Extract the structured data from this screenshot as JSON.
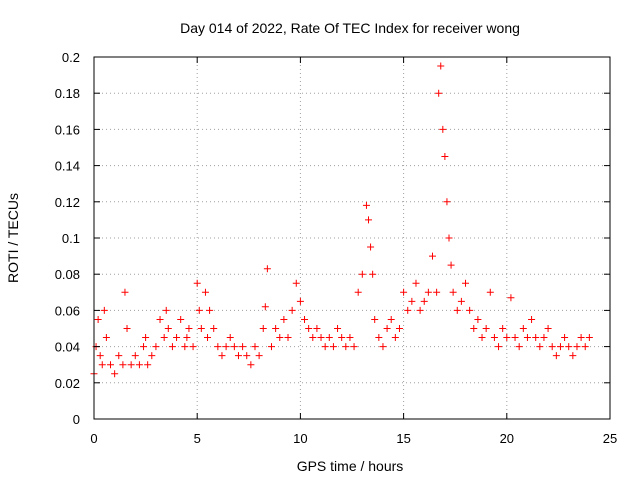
{
  "chart_data": {
    "type": "scatter",
    "title": "Day 014 of 2022, Rate Of TEC Index for receiver wong",
    "xlabel": "GPS time / hours",
    "ylabel": "ROTI / TECUs",
    "xlim": [
      0,
      25
    ],
    "ylim": [
      0,
      0.2
    ],
    "xticks": [
      0,
      5,
      10,
      15,
      20,
      25
    ],
    "yticks": [
      0,
      0.02,
      0.04,
      0.06,
      0.08,
      0.1,
      0.12,
      0.14,
      0.16,
      0.18,
      0.2
    ],
    "grid": true,
    "marker": "+",
    "color": "#ff0000",
    "series": [
      {
        "name": "ROTI",
        "x": [
          0.0,
          0.1,
          0.2,
          0.3,
          0.4,
          0.5,
          0.6,
          0.8,
          1.0,
          1.2,
          1.4,
          1.5,
          1.6,
          1.8,
          2.0,
          2.2,
          2.4,
          2.5,
          2.6,
          2.8,
          3.0,
          3.2,
          3.4,
          3.5,
          3.6,
          3.8,
          4.0,
          4.2,
          4.4,
          4.5,
          4.6,
          4.8,
          5.0,
          5.1,
          5.2,
          5.4,
          5.5,
          5.6,
          5.8,
          6.0,
          6.2,
          6.4,
          6.6,
          6.8,
          7.0,
          7.2,
          7.4,
          7.6,
          7.8,
          8.0,
          8.2,
          8.3,
          8.4,
          8.6,
          8.8,
          9.0,
          9.2,
          9.4,
          9.6,
          9.8,
          10.0,
          10.2,
          10.4,
          10.6,
          10.8,
          11.0,
          11.2,
          11.4,
          11.6,
          11.8,
          12.0,
          12.2,
          12.4,
          12.6,
          12.8,
          13.0,
          13.2,
          13.3,
          13.4,
          13.5,
          13.6,
          13.8,
          14.0,
          14.2,
          14.4,
          14.6,
          14.8,
          15.0,
          15.2,
          15.4,
          15.6,
          15.8,
          16.0,
          16.2,
          16.4,
          16.6,
          16.7,
          16.8,
          16.9,
          17.0,
          17.1,
          17.2,
          17.3,
          17.4,
          17.6,
          17.8,
          18.0,
          18.2,
          18.4,
          18.6,
          18.8,
          19.0,
          19.2,
          19.4,
          19.6,
          19.8,
          20.0,
          20.2,
          20.4,
          20.6,
          20.8,
          21.0,
          21.2,
          21.4,
          21.6,
          21.8,
          22.0,
          22.2,
          22.4,
          22.6,
          22.8,
          23.0,
          23.2,
          23.4,
          23.6,
          23.8,
          24.0
        ],
        "y": [
          0.025,
          0.04,
          0.055,
          0.035,
          0.03,
          0.06,
          0.045,
          0.03,
          0.025,
          0.035,
          0.03,
          0.07,
          0.05,
          0.03,
          0.035,
          0.03,
          0.04,
          0.045,
          0.03,
          0.035,
          0.04,
          0.055,
          0.045,
          0.06,
          0.05,
          0.04,
          0.045,
          0.055,
          0.04,
          0.045,
          0.05,
          0.04,
          0.075,
          0.06,
          0.05,
          0.07,
          0.045,
          0.06,
          0.05,
          0.04,
          0.035,
          0.04,
          0.045,
          0.04,
          0.035,
          0.04,
          0.035,
          0.03,
          0.04,
          0.035,
          0.05,
          0.062,
          0.083,
          0.04,
          0.05,
          0.045,
          0.055,
          0.045,
          0.06,
          0.075,
          0.065,
          0.055,
          0.05,
          0.045,
          0.05,
          0.045,
          0.04,
          0.045,
          0.04,
          0.05,
          0.045,
          0.04,
          0.045,
          0.04,
          0.07,
          0.08,
          0.118,
          0.11,
          0.095,
          0.08,
          0.055,
          0.045,
          0.04,
          0.05,
          0.055,
          0.045,
          0.05,
          0.07,
          0.06,
          0.065,
          0.075,
          0.06,
          0.065,
          0.07,
          0.09,
          0.07,
          0.18,
          0.195,
          0.16,
          0.145,
          0.12,
          0.1,
          0.085,
          0.07,
          0.06,
          0.065,
          0.075,
          0.06,
          0.05,
          0.055,
          0.045,
          0.05,
          0.07,
          0.045,
          0.04,
          0.05,
          0.045,
          0.067,
          0.045,
          0.04,
          0.05,
          0.045,
          0.055,
          0.045,
          0.04,
          0.045,
          0.05,
          0.04,
          0.035,
          0.04,
          0.045,
          0.04,
          0.035,
          0.04,
          0.045,
          0.04,
          0.045
        ]
      }
    ]
  }
}
